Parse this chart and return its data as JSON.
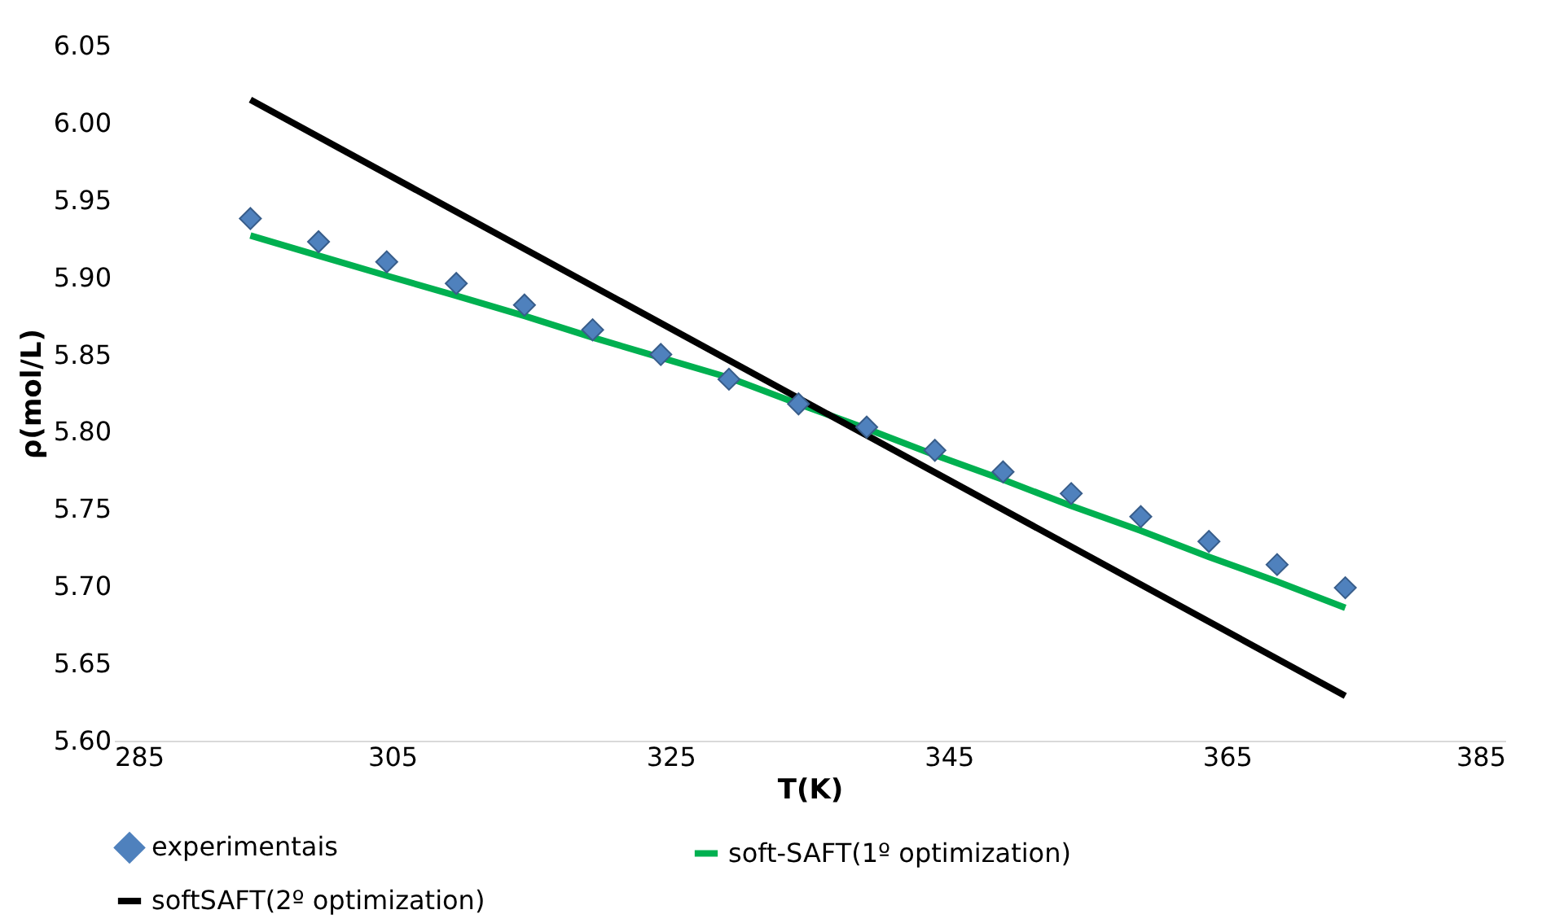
{
  "chart_data": {
    "type": "scatter",
    "xlabel": "T(K)",
    "ylabel": "ρ(mol/L)",
    "xlim": [
      285,
      385
    ],
    "xticks": [
      285,
      305,
      325,
      345,
      365,
      385
    ],
    "ylim": [
      5.6,
      6.05
    ],
    "yticks": [
      {
        "value": 5.6,
        "label": "5.60"
      },
      {
        "value": 5.65,
        "label": "5.65"
      },
      {
        "value": 5.7,
        "label": "5.70"
      },
      {
        "value": 5.75,
        "label": "5.75"
      },
      {
        "value": 5.8,
        "label": "5.80"
      },
      {
        "value": 5.85,
        "label": "5.85"
      },
      {
        "value": 5.9,
        "label": "5.90"
      },
      {
        "value": 5.95,
        "label": "5.95"
      },
      {
        "value": 6.0,
        "label": "6.00"
      },
      {
        "value": 6.05,
        "label": "6.05"
      }
    ],
    "grid": false,
    "legend": "bottom",
    "series": [
      {
        "name": "experimentais",
        "marker": "diamond",
        "color": "#4f81bd",
        "x": [
          294.8,
          299.7,
          304.6,
          309.6,
          314.5,
          319.4,
          324.3,
          329.2,
          334.2,
          339.1,
          344.0,
          348.9,
          353.8,
          358.8,
          363.7,
          368.6,
          373.5
        ],
        "values": [
          5.938,
          5.923,
          5.91,
          5.896,
          5.882,
          5.866,
          5.85,
          5.834,
          5.818,
          5.803,
          5.788,
          5.774,
          5.76,
          5.745,
          5.729,
          5.714,
          5.699
        ]
      },
      {
        "name": "soft-SAFT(1º optimization)",
        "type": "line",
        "marker": "none",
        "color": "#00b050",
        "x": [
          294.8,
          299.7,
          304.6,
          309.6,
          314.5,
          319.4,
          324.3,
          329.2,
          334.2,
          339.1,
          344.0,
          348.9,
          353.8,
          358.8,
          363.7,
          368.6,
          373.5
        ],
        "values": [
          5.927,
          5.914,
          5.901,
          5.888,
          5.875,
          5.861,
          5.848,
          5.835,
          5.818,
          5.802,
          5.785,
          5.769,
          5.752,
          5.736,
          5.719,
          5.703,
          5.686
        ]
      },
      {
        "name": "softSAFT(2º optimization)",
        "type": "line",
        "marker": "none",
        "color": "#000000",
        "x": [
          294.8,
          373.5
        ],
        "values": [
          6.015,
          5.629
        ]
      }
    ]
  }
}
